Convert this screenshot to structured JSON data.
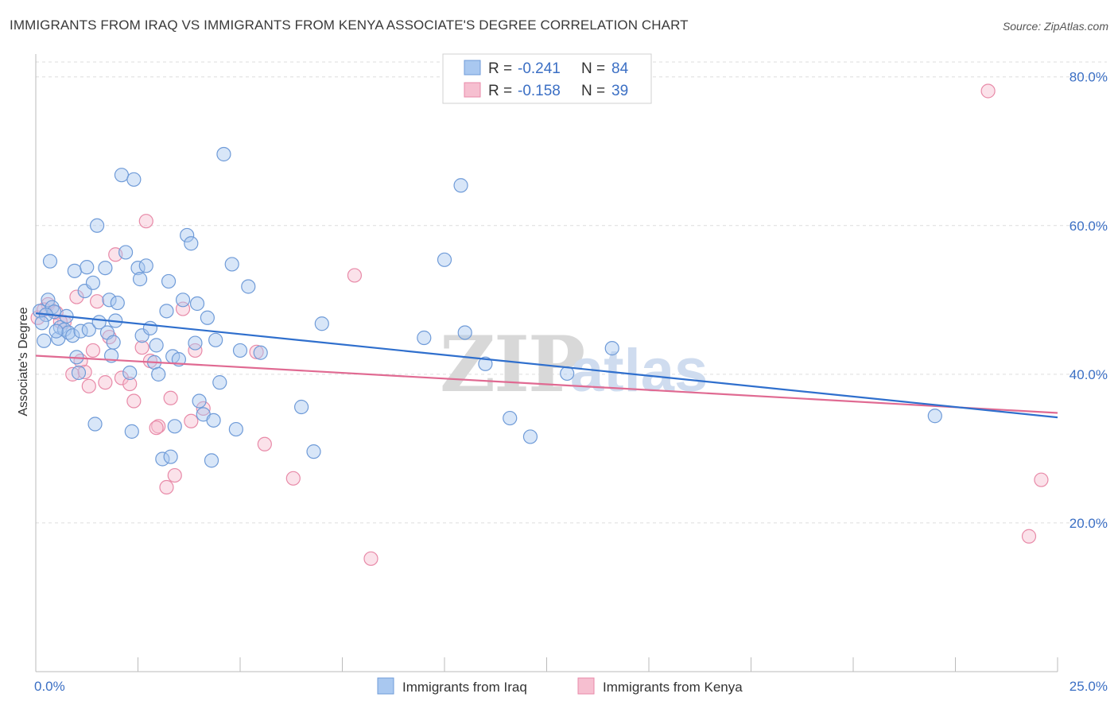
{
  "title": "IMMIGRANTS FROM IRAQ VS IMMIGRANTS FROM KENYA ASSOCIATE'S DEGREE CORRELATION CHART",
  "source": "Source: ZipAtlas.com",
  "watermark": {
    "zip": "ZIP",
    "atlas": "atlas"
  },
  "colors": {
    "iraq_fill": "#a9c8f0",
    "iraq_stroke": "#6f9bd8",
    "iraq_line": "#2f6fcd",
    "kenya_fill": "#f6bfd0",
    "kenya_stroke": "#e88aa8",
    "kenya_line": "#e06a92",
    "accent_text": "#3b6fc4",
    "grid": "#dddddd"
  },
  "legend": {
    "rows": [
      {
        "r_label": "R = ",
        "r_value": "-0.241",
        "n_label": "N = ",
        "n_value": "84"
      },
      {
        "r_label": "R = ",
        "r_value": "-0.158",
        "n_label": "N = ",
        "n_value": "39"
      }
    ]
  },
  "chart_data": {
    "type": "scatter",
    "title": "IMMIGRANTS FROM IRAQ VS IMMIGRANTS FROM KENYA ASSOCIATE'S DEGREE CORRELATION CHART",
    "xlabel": "",
    "ylabel": "Associate's Degree",
    "xlim": [
      0,
      25
    ],
    "ylim": [
      0,
      82
    ],
    "x_ticks_labels": [
      "0.0%",
      "25.0%"
    ],
    "y_ticks": [
      20,
      40,
      60,
      80
    ],
    "y_ticks_labels": [
      "20.0%",
      "40.0%",
      "60.0%",
      "80.0%"
    ],
    "grid": true,
    "legend_position": "top-center",
    "series": [
      {
        "name": "Immigrants from Iraq",
        "r": -0.241,
        "n": 84,
        "trend": {
          "x": [
            0,
            25
          ],
          "y": [
            48.2,
            34.2
          ]
        },
        "points": [
          [
            0.1,
            48.5
          ],
          [
            0.2,
            44.5
          ],
          [
            0.3,
            50.0
          ],
          [
            0.35,
            55.2
          ],
          [
            0.4,
            49.0
          ],
          [
            0.45,
            48.4
          ],
          [
            0.55,
            44.8
          ],
          [
            0.6,
            46.3
          ],
          [
            0.7,
            46.0
          ],
          [
            0.8,
            45.6
          ],
          [
            0.9,
            45.2
          ],
          [
            0.95,
            53.9
          ],
          [
            1.0,
            42.3
          ],
          [
            1.05,
            40.2
          ],
          [
            1.1,
            45.8
          ],
          [
            1.2,
            51.2
          ],
          [
            1.25,
            54.4
          ],
          [
            1.3,
            46.0
          ],
          [
            1.4,
            52.3
          ],
          [
            1.5,
            60.0
          ],
          [
            1.55,
            47.0
          ],
          [
            1.7,
            54.3
          ],
          [
            1.75,
            45.6
          ],
          [
            1.8,
            50.0
          ],
          [
            1.9,
            44.3
          ],
          [
            1.95,
            47.2
          ],
          [
            2.0,
            49.6
          ],
          [
            2.1,
            66.8
          ],
          [
            2.2,
            56.4
          ],
          [
            2.3,
            40.2
          ],
          [
            2.4,
            66.2
          ],
          [
            2.5,
            54.3
          ],
          [
            2.55,
            52.8
          ],
          [
            2.6,
            45.2
          ],
          [
            2.7,
            54.6
          ],
          [
            2.8,
            46.2
          ],
          [
            2.9,
            41.6
          ],
          [
            3.0,
            40.0
          ],
          [
            3.1,
            28.6
          ],
          [
            3.2,
            48.5
          ],
          [
            3.25,
            52.5
          ],
          [
            3.35,
            42.4
          ],
          [
            3.4,
            33.0
          ],
          [
            3.5,
            42.0
          ],
          [
            3.6,
            50.0
          ],
          [
            3.7,
            58.7
          ],
          [
            3.8,
            57.6
          ],
          [
            3.9,
            44.2
          ],
          [
            4.0,
            36.4
          ],
          [
            4.1,
            34.6
          ],
          [
            4.2,
            47.6
          ],
          [
            4.4,
            44.6
          ],
          [
            4.5,
            38.9
          ],
          [
            4.6,
            69.6
          ],
          [
            4.8,
            54.8
          ],
          [
            4.9,
            32.6
          ],
          [
            5.2,
            51.8
          ],
          [
            5.5,
            42.9
          ],
          [
            6.5,
            35.6
          ],
          [
            6.8,
            29.6
          ],
          [
            7.0,
            46.8
          ],
          [
            9.5,
            44.9
          ],
          [
            10.0,
            55.4
          ],
          [
            10.4,
            65.4
          ],
          [
            10.5,
            45.6
          ],
          [
            11.0,
            41.4
          ],
          [
            11.6,
            34.1
          ],
          [
            12.1,
            31.6
          ],
          [
            13.0,
            40.1
          ],
          [
            14.1,
            43.5
          ],
          [
            22.0,
            34.4
          ],
          [
            0.5,
            45.8
          ],
          [
            1.45,
            33.3
          ],
          [
            2.35,
            32.3
          ],
          [
            3.3,
            28.9
          ],
          [
            4.3,
            28.4
          ],
          [
            0.25,
            48.0
          ],
          [
            0.75,
            47.8
          ],
          [
            1.85,
            42.5
          ],
          [
            2.95,
            43.9
          ],
          [
            3.95,
            49.5
          ],
          [
            4.35,
            33.8
          ],
          [
            5.0,
            43.2
          ],
          [
            0.15,
            46.9
          ]
        ]
      },
      {
        "name": "Immigrants from Kenya",
        "r": -0.158,
        "n": 39,
        "trend": {
          "x": [
            0,
            25
          ],
          "y": [
            42.5,
            34.8
          ]
        },
        "points": [
          [
            0.05,
            47.6
          ],
          [
            0.3,
            49.4
          ],
          [
            0.5,
            48.3
          ],
          [
            0.7,
            47.0
          ],
          [
            0.9,
            40.0
          ],
          [
            1.1,
            41.8
          ],
          [
            1.3,
            38.4
          ],
          [
            1.4,
            43.2
          ],
          [
            1.5,
            49.8
          ],
          [
            1.7,
            38.9
          ],
          [
            1.8,
            45.0
          ],
          [
            1.95,
            56.1
          ],
          [
            2.1,
            39.5
          ],
          [
            2.3,
            38.7
          ],
          [
            2.4,
            36.4
          ],
          [
            2.6,
            43.6
          ],
          [
            2.7,
            60.6
          ],
          [
            2.8,
            41.8
          ],
          [
            3.0,
            33.0
          ],
          [
            3.2,
            24.8
          ],
          [
            3.3,
            36.8
          ],
          [
            3.4,
            26.4
          ],
          [
            3.6,
            48.8
          ],
          [
            3.9,
            43.2
          ],
          [
            4.1,
            35.4
          ],
          [
            5.4,
            43.0
          ],
          [
            5.6,
            30.6
          ],
          [
            6.3,
            26.0
          ],
          [
            7.8,
            53.3
          ],
          [
            8.2,
            15.2
          ],
          [
            23.3,
            78.1
          ],
          [
            24.6,
            25.8
          ],
          [
            24.3,
            18.2
          ],
          [
            1.0,
            50.4
          ],
          [
            0.2,
            48.7
          ],
          [
            2.95,
            32.8
          ],
          [
            3.8,
            33.7
          ],
          [
            1.2,
            40.3
          ],
          [
            0.6,
            47.1
          ]
        ]
      }
    ]
  },
  "bottom_legend": [
    {
      "label": "Immigrants from Iraq"
    },
    {
      "label": "Immigrants from Kenya"
    }
  ]
}
